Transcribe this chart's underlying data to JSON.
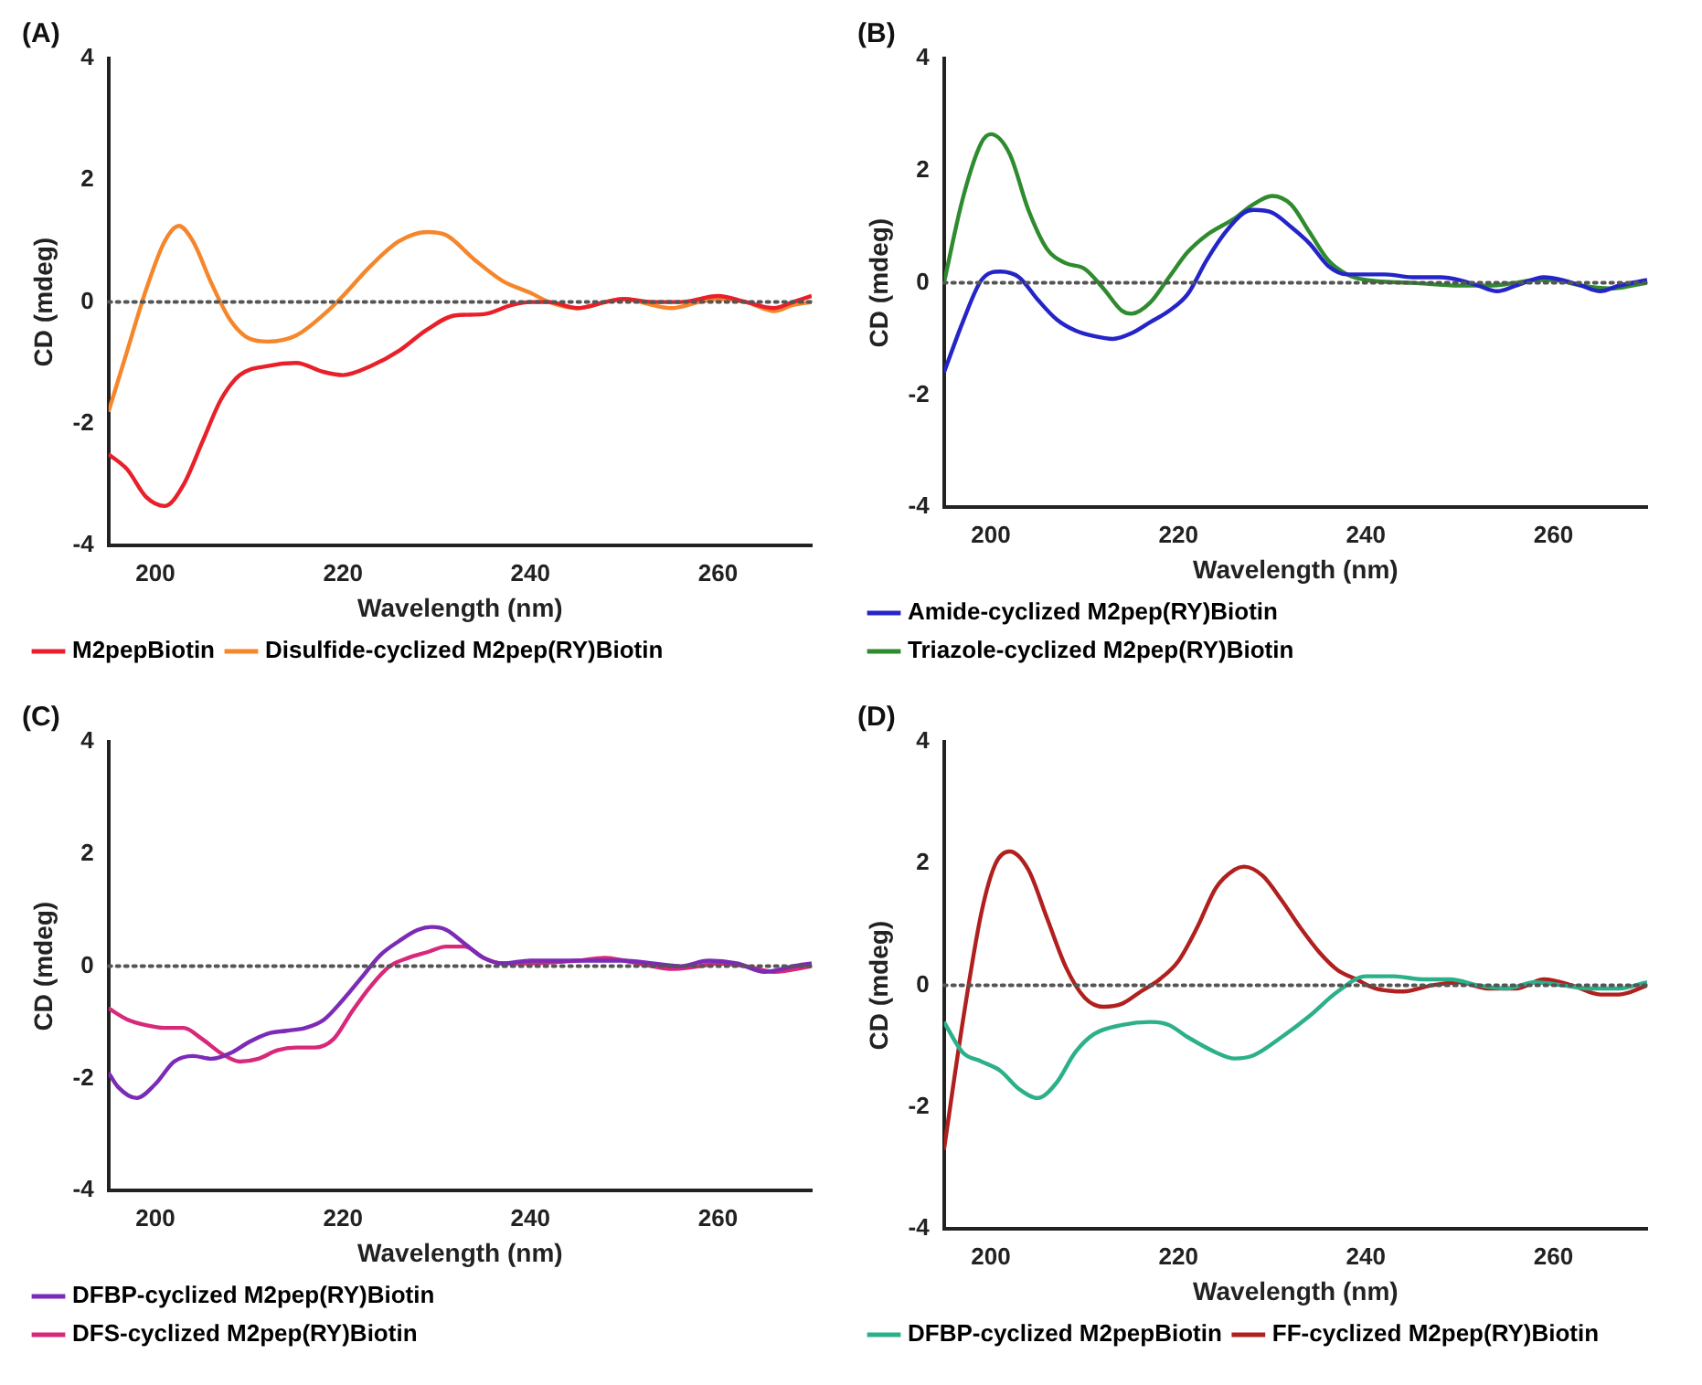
{
  "chart_data": [
    {
      "type": "line",
      "title": "(A)",
      "xlabel": "Wavelength (nm)",
      "ylabel": "CD (mdeg)",
      "xlim": [
        195,
        270
      ],
      "xticks": [
        200,
        220,
        240,
        260
      ],
      "ylim": [
        -4,
        4
      ],
      "yticks": [
        -4,
        -2,
        0,
        2,
        4
      ],
      "grid": false,
      "legend": "bottom",
      "marker": "none",
      "line_style": "solid",
      "ref_lines": [
        {
          "axis": "y",
          "value": 0,
          "color": "#555555",
          "line_style": "dotted"
        }
      ],
      "series": [
        {
          "name": "M2pepBiotin",
          "color": "#e8202a",
          "x": [
            195,
            197,
            199,
            201,
            203,
            205,
            207,
            209,
            212,
            215,
            218,
            220,
            223,
            226,
            229,
            232,
            235,
            238,
            240,
            242,
            245,
            248,
            250,
            253,
            256,
            260,
            263,
            266,
            268,
            270
          ],
          "values": [
            -2.5,
            -2.75,
            -3.2,
            -3.35,
            -3.0,
            -2.3,
            -1.6,
            -1.2,
            -1.05,
            -1.0,
            -1.15,
            -1.2,
            -1.05,
            -0.8,
            -0.45,
            -0.22,
            -0.2,
            -0.05,
            0,
            0,
            -0.1,
            0,
            0.05,
            0,
            0,
            0.1,
            0,
            -0.1,
            0,
            0.1
          ]
        },
        {
          "name": "Disulfide-cyclized M2pep(RY)Biotin",
          "color": "#f5862a",
          "x": [
            195,
            197,
            199,
            201,
            202.5,
            204,
            206,
            208,
            210,
            212,
            215,
            218,
            220,
            223,
            226,
            229,
            231,
            234,
            237,
            240,
            242,
            245,
            248,
            250,
            253,
            255,
            258,
            260,
            263,
            266,
            268,
            270
          ],
          "values": [
            -1.8,
            -0.8,
            0.2,
            1.0,
            1.25,
            1.0,
            0.3,
            -0.3,
            -0.6,
            -0.65,
            -0.55,
            -0.2,
            0.1,
            0.6,
            1.0,
            1.15,
            1.1,
            0.7,
            0.35,
            0.15,
            0,
            -0.1,
            0,
            0.05,
            -0.05,
            -0.1,
            0,
            0.05,
            0,
            -0.15,
            -0.05,
            0
          ]
        }
      ]
    },
    {
      "type": "line",
      "title": "(B)",
      "xlabel": "Wavelength (nm)",
      "ylabel": "CD (mdeg)",
      "xlim": [
        195,
        270
      ],
      "xticks": [
        200,
        220,
        240,
        260
      ],
      "ylim": [
        -4,
        4
      ],
      "yticks": [
        -4,
        -2,
        0,
        2,
        4
      ],
      "grid": false,
      "legend": "bottom",
      "marker": "none",
      "line_style": "solid",
      "ref_lines": [
        {
          "axis": "y",
          "value": 0,
          "color": "#555555",
          "line_style": "dotted"
        }
      ],
      "series": [
        {
          "name": "Amide-cyclized M2pep(RY)Biotin",
          "color": "#2424c8",
          "x": [
            195,
            197,
            199,
            201,
            203,
            205,
            207,
            209,
            211,
            213,
            215,
            217,
            219,
            221,
            223,
            225,
            227,
            228,
            230,
            232,
            234,
            236,
            238,
            242,
            245,
            248,
            250,
            252,
            254,
            256,
            259,
            261,
            263,
            265,
            267,
            270
          ],
          "values": [
            -1.6,
            -0.7,
            0.05,
            0.2,
            0.1,
            -0.3,
            -0.65,
            -0.85,
            -0.95,
            -1.0,
            -0.9,
            -0.7,
            -0.5,
            -0.2,
            0.4,
            0.9,
            1.25,
            1.3,
            1.25,
            1.0,
            0.7,
            0.3,
            0.15,
            0.15,
            0.1,
            0.1,
            0.05,
            -0.05,
            -0.15,
            -0.05,
            0.1,
            0.05,
            -0.05,
            -0.15,
            -0.05,
            0.05
          ]
        },
        {
          "name": "Triazole-cyclized M2pep(RY)Biotin",
          "color": "#2e8b2e",
          "x": [
            195,
            197,
            199,
            200,
            202,
            204,
            206,
            208,
            210,
            212,
            214,
            215,
            217,
            219,
            221,
            223,
            226,
            228,
            230,
            232,
            234,
            236,
            238,
            240,
            245,
            250,
            253,
            256,
            258,
            260,
            263,
            266,
            270
          ],
          "values": [
            0,
            1.5,
            2.5,
            2.65,
            2.3,
            1.3,
            0.6,
            0.35,
            0.25,
            -0.1,
            -0.5,
            -0.55,
            -0.35,
            0.1,
            0.55,
            0.85,
            1.15,
            1.4,
            1.55,
            1.4,
            0.9,
            0.4,
            0.15,
            0.05,
            0,
            -0.05,
            -0.05,
            0,
            0.05,
            0.05,
            -0.05,
            -0.1,
            0
          ]
        }
      ]
    },
    {
      "type": "line",
      "title": "(C)",
      "xlabel": "Wavelength (nm)",
      "ylabel": "CD (mdeg)",
      "xlim": [
        195,
        270
      ],
      "xticks": [
        200,
        220,
        240,
        260
      ],
      "ylim": [
        -4,
        4
      ],
      "yticks": [
        -4,
        -2,
        0,
        2,
        4
      ],
      "grid": false,
      "legend": "bottom",
      "marker": "none",
      "line_style": "solid",
      "ref_lines": [
        {
          "axis": "y",
          "value": 0,
          "color": "#555555",
          "line_style": "dotted"
        }
      ],
      "series": [
        {
          "name": "DFBP-cyclized M2pep(RY)Biotin",
          "color": "#7b2bb5",
          "x": [
            195,
            196,
            198,
            200,
            202,
            204,
            206,
            208,
            210,
            212,
            214,
            216,
            218,
            220,
            222,
            224,
            226,
            228,
            229.5,
            231,
            233,
            235,
            237,
            240,
            245,
            250,
            253,
            256,
            259,
            262,
            265,
            268,
            270
          ],
          "values": [
            -1.9,
            -2.15,
            -2.35,
            -2.1,
            -1.7,
            -1.6,
            -1.65,
            -1.55,
            -1.35,
            -1.2,
            -1.15,
            -1.1,
            -0.95,
            -0.6,
            -0.2,
            0.2,
            0.45,
            0.65,
            0.7,
            0.65,
            0.4,
            0.15,
            0.05,
            0.1,
            0.1,
            0.1,
            0.05,
            0,
            0.1,
            0.05,
            -0.1,
            0,
            0.05
          ]
        },
        {
          "name": "DFS-cyclized M2pep(RY)Biotin",
          "color": "#d8287a",
          "x": [
            195,
            197,
            199,
            201,
            203,
            205,
            207,
            209,
            211,
            213,
            215,
            217,
            219,
            221,
            223,
            225,
            227,
            229,
            231,
            233,
            235,
            237,
            240,
            245,
            248,
            250,
            253,
            255,
            258,
            260,
            263,
            266,
            270
          ],
          "values": [
            -0.75,
            -0.95,
            -1.05,
            -1.1,
            -1.1,
            -1.3,
            -1.55,
            -1.7,
            -1.65,
            -1.5,
            -1.45,
            -1.45,
            -1.3,
            -0.8,
            -0.35,
            0,
            0.15,
            0.25,
            0.35,
            0.35,
            0.15,
            0.05,
            0.05,
            0.1,
            0.15,
            0.1,
            0,
            -0.05,
            0,
            0.05,
            0,
            -0.1,
            0
          ]
        }
      ]
    },
    {
      "type": "line",
      "title": "(D)",
      "xlabel": "Wavelength (nm)",
      "ylabel": "CD (mdeg)",
      "xlim": [
        195,
        270
      ],
      "xticks": [
        200,
        220,
        240,
        260
      ],
      "ylim": [
        -4,
        4
      ],
      "yticks": [
        -4,
        -2,
        0,
        2,
        4
      ],
      "grid": false,
      "legend": "bottom",
      "marker": "none",
      "line_style": "solid",
      "ref_lines": [
        {
          "axis": "y",
          "value": 0,
          "color": "#555555",
          "line_style": "dotted"
        }
      ],
      "series": [
        {
          "name": "DFBP-cyclized M2pepBiotin",
          "color": "#2bb08a",
          "x": [
            195,
            197,
            199,
            201,
            203,
            205,
            207,
            209,
            211,
            214,
            217,
            219,
            221,
            224,
            226,
            228,
            231,
            234,
            237,
            240,
            243,
            246,
            249,
            252,
            255,
            258,
            261,
            264,
            267,
            270
          ],
          "values": [
            -0.6,
            -1.1,
            -1.25,
            -1.4,
            -1.7,
            -1.85,
            -1.6,
            -1.1,
            -0.8,
            -0.65,
            -0.6,
            -0.65,
            -0.85,
            -1.1,
            -1.2,
            -1.15,
            -0.85,
            -0.5,
            -0.1,
            0.15,
            0.15,
            0.1,
            0.1,
            0,
            -0.05,
            0.05,
            0,
            -0.05,
            -0.05,
            0.05
          ]
        },
        {
          "name": "FF-cyclized M2pep(RY)Biotin",
          "color": "#b0201e",
          "x": [
            195,
            197,
            199,
            200.5,
            202,
            204,
            206,
            208,
            210,
            212,
            214,
            216,
            218,
            220,
            222,
            224,
            226,
            227,
            229,
            231,
            233,
            235,
            237,
            239,
            241,
            244,
            247,
            250,
            253,
            256,
            259,
            262,
            265,
            267,
            270
          ],
          "values": [
            -2.7,
            -0.6,
            1.2,
            2.0,
            2.2,
            1.9,
            1.1,
            0.3,
            -0.2,
            -0.35,
            -0.3,
            -0.1,
            0.1,
            0.4,
            0.95,
            1.6,
            1.9,
            1.95,
            1.8,
            1.4,
            0.95,
            0.55,
            0.25,
            0.1,
            -0.05,
            -0.1,
            0,
            0.05,
            -0.05,
            -0.05,
            0.1,
            0,
            -0.15,
            -0.15,
            0
          ]
        }
      ]
    }
  ]
}
